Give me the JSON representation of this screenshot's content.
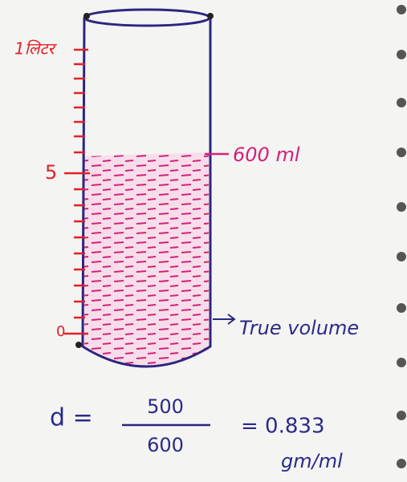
{
  "scale_labels": {
    "top": "1लिटर",
    "middle": "5",
    "bottom": "0"
  },
  "annotations": {
    "liquid_level": "600 ml",
    "true_volume": "True volume"
  },
  "formula": {
    "lhs": "d =",
    "numerator": "500",
    "denominator": "600",
    "result": "= 0.833",
    "unit": "gm/ml"
  }
}
